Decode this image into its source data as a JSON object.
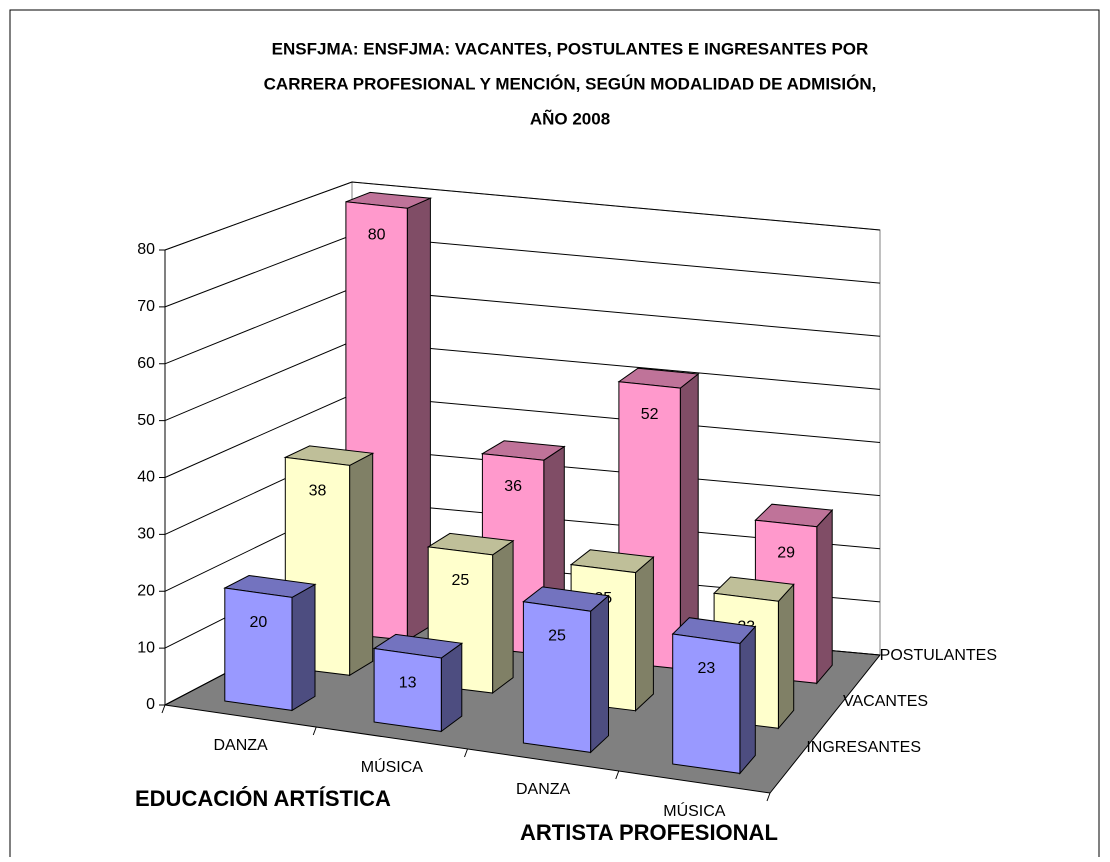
{
  "chart_data": {
    "type": "bar3d",
    "title": [
      "ENSFJMA: ENSFJMA: VACANTES, POSTULANTES E INGRESANTES POR",
      "CARRERA PROFESIONAL Y MENCIÓN, SEGÚN MODALIDAD DE ADMISIÓN,",
      "AÑO 2008"
    ],
    "categories": [
      "DANZA",
      "MÚSICA",
      "DANZA",
      "MÚSICA"
    ],
    "group_labels": [
      "EDUCACIÓN ARTÍSTICA",
      "ARTISTA PROFESIONAL"
    ],
    "series": [
      {
        "name": "INGRESANTES",
        "color": "#9999ff",
        "values": [
          20,
          13,
          25,
          23
        ]
      },
      {
        "name": "VACANTES",
        "color": "#ffffcc",
        "values": [
          38,
          25,
          25,
          23
        ]
      },
      {
        "name": "POSTULANTES",
        "color": "#ff99cc",
        "values": [
          80,
          36,
          52,
          29
        ]
      }
    ],
    "ylim": [
      0,
      80
    ],
    "yticks": [
      0,
      10,
      20,
      30,
      40,
      50,
      60,
      70,
      80
    ],
    "grid": true
  }
}
